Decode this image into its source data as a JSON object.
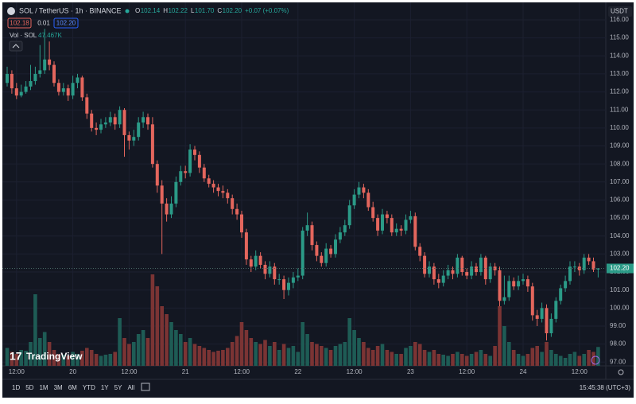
{
  "header": {
    "symbol": "SOL / TetherUS · 1h · BINANCE",
    "ohlc": [
      "O",
      "102.14",
      "H",
      "102.22",
      "L",
      "101.70",
      "C",
      "102.20"
    ],
    "change": "+0.07 (+0.07%)",
    "bid": "102.18",
    "spread": "0.01",
    "ask": "102.20",
    "volume_name": "Vol · SOL",
    "volume_label": "47.467K",
    "currency": "USDT",
    "logo": "TradingView"
  },
  "chart_data": {
    "type": "candlestick",
    "open": [
      112.5,
      113.0,
      112.2,
      111.8,
      112.0,
      112.3,
      112.6,
      113.0,
      113.2,
      113.8,
      113.5,
      112.5,
      112.0,
      112.2,
      111.8,
      112.5,
      112.8,
      111.7,
      110.8,
      110.0,
      109.9,
      110.2,
      110.3,
      110.6,
      110.2,
      111.0,
      109.6,
      109.3,
      109.5,
      110.3,
      110.6,
      110.2,
      108.0,
      106.8,
      105.8,
      105.2,
      105.8,
      107.0,
      107.6,
      107.5,
      108.8,
      108.5,
      107.8,
      107.2,
      106.9,
      106.7,
      106.5,
      106.4,
      106.1,
      105.5,
      105.2,
      104.2,
      102.7,
      102.3,
      102.9,
      102.4,
      101.9,
      102.3,
      101.6,
      101.6,
      101.0,
      101.4,
      101.7,
      101.8,
      104.3,
      104.6,
      103.5,
      102.9,
      102.5,
      103.3,
      103.0,
      103.8,
      104.2,
      104.6,
      105.7,
      106.3,
      106.7,
      106.4,
      105.6,
      105.0,
      104.3,
      105.2,
      105.0,
      104.2,
      104.4,
      104.3,
      104.9,
      105.1,
      103.4,
      102.9,
      101.9,
      102.3,
      101.6,
      101.4,
      101.8,
      102.1,
      101.9,
      102.8,
      102.0,
      101.8,
      102.3,
      102.0,
      102.8,
      101.6,
      102.3,
      102.1,
      100.4,
      100.6,
      101.5,
      101.2,
      101.5,
      101.6,
      101.2,
      99.6,
      99.4,
      100.0,
      98.6,
      99.4,
      100.4,
      101.1,
      101.5,
      102.3,
      102.3,
      102.1,
      102.8,
      102.6,
      102.14
    ],
    "high": [
      113.4,
      113.2,
      112.5,
      112.4,
      112.6,
      113.5,
      113.4,
      114.6,
      115.5,
      114.8,
      113.7,
      112.7,
      112.5,
      112.4,
      112.9,
      113.0,
      112.9,
      111.9,
      111.0,
      110.3,
      110.5,
      110.6,
      110.9,
      110.8,
      111.2,
      111.1,
      109.8,
      109.9,
      110.6,
      110.9,
      110.8,
      110.6,
      108.2,
      107.1,
      106.1,
      106.2,
      107.3,
      107.9,
      107.9,
      109.1,
      109.0,
      108.7,
      108.0,
      107.4,
      107.1,
      106.9,
      106.8,
      106.6,
      106.3,
      105.8,
      105.4,
      104.4,
      102.9,
      103.2,
      103.1,
      102.6,
      102.6,
      102.5,
      101.9,
      101.8,
      101.7,
      102.0,
      102.2,
      104.5,
      105.3,
      104.8,
      103.7,
      103.1,
      103.6,
      103.5,
      104.1,
      104.5,
      104.9,
      106.0,
      106.6,
      107.0,
      106.9,
      106.6,
      105.9,
      105.2,
      105.5,
      105.4,
      105.2,
      104.7,
      104.6,
      105.2,
      105.4,
      105.3,
      103.6,
      103.1,
      102.6,
      102.5,
      101.9,
      102.1,
      102.4,
      102.3,
      103.0,
      102.9,
      102.2,
      102.6,
      102.5,
      103.0,
      102.9,
      102.5,
      102.5,
      102.3,
      101.8,
      101.8,
      101.7,
      101.8,
      101.9,
      101.8,
      101.4,
      99.9,
      100.3,
      100.2,
      99.7,
      100.6,
      101.3,
      101.8,
      102.6,
      102.6,
      102.5,
      103.0,
      103.0,
      102.8,
      102.22
    ],
    "low": [
      112.3,
      111.9,
      111.6,
      111.7,
      111.9,
      112.1,
      112.4,
      112.8,
      113.0,
      113.2,
      112.3,
      111.8,
      111.8,
      111.5,
      111.6,
      112.2,
      111.5,
      110.5,
      109.8,
      109.6,
      109.7,
      110.0,
      110.1,
      109.9,
      110.0,
      108.4,
      108.8,
      109.0,
      109.3,
      110.0,
      109.9,
      107.8,
      106.4,
      103.0,
      104.8,
      105.0,
      105.6,
      106.8,
      107.2,
      107.3,
      108.2,
      107.5,
      107.0,
      106.7,
      106.4,
      106.2,
      106.1,
      105.8,
      105.2,
      104.9,
      103.9,
      102.4,
      102.0,
      102.1,
      102.2,
      101.6,
      101.7,
      101.3,
      101.3,
      100.5,
      100.7,
      101.1,
      101.5,
      101.6,
      104.0,
      103.2,
      102.6,
      102.3,
      102.3,
      102.8,
      102.8,
      103.6,
      104.0,
      104.4,
      105.5,
      106.1,
      106.1,
      105.4,
      104.8,
      104.0,
      104.1,
      104.7,
      104.0,
      104.0,
      104.0,
      104.1,
      104.7,
      103.2,
      102.6,
      101.7,
      101.7,
      101.3,
      101.1,
      101.2,
      101.6,
      101.6,
      101.7,
      101.8,
      101.6,
      101.6,
      101.8,
      101.8,
      101.3,
      101.4,
      101.8,
      100.1,
      100.2,
      100.4,
      101.0,
      101.0,
      101.3,
      100.9,
      99.3,
      99.0,
      99.2,
      98.2,
      98.4,
      99.2,
      100.2,
      100.9,
      101.3,
      102.0,
      101.8,
      101.9,
      102.4,
      102.0,
      101.7
    ],
    "close": [
      113.0,
      112.2,
      111.8,
      112.0,
      112.3,
      112.6,
      113.0,
      113.2,
      113.8,
      113.5,
      112.5,
      112.0,
      112.2,
      111.8,
      112.5,
      112.8,
      111.7,
      110.8,
      110.0,
      109.9,
      110.2,
      110.3,
      110.6,
      110.2,
      111.0,
      109.6,
      109.3,
      109.5,
      110.3,
      110.6,
      110.2,
      108.0,
      106.8,
      105.8,
      105.2,
      105.8,
      107.0,
      107.6,
      107.5,
      108.8,
      108.5,
      107.8,
      107.2,
      106.9,
      106.7,
      106.5,
      106.4,
      106.1,
      105.5,
      105.2,
      104.2,
      102.7,
      102.3,
      102.9,
      102.4,
      101.9,
      102.3,
      101.6,
      101.6,
      101.0,
      101.4,
      101.7,
      101.8,
      104.3,
      104.6,
      103.5,
      102.9,
      102.5,
      103.3,
      103.0,
      103.8,
      104.2,
      104.6,
      105.7,
      106.3,
      106.7,
      106.4,
      105.6,
      105.0,
      104.3,
      105.2,
      105.0,
      104.2,
      104.4,
      104.3,
      104.9,
      105.1,
      103.4,
      102.9,
      101.9,
      102.3,
      101.6,
      101.4,
      101.8,
      102.1,
      101.9,
      102.8,
      102.0,
      101.8,
      102.3,
      102.0,
      102.8,
      101.6,
      102.3,
      102.1,
      100.4,
      100.6,
      101.5,
      101.2,
      101.5,
      101.6,
      101.2,
      99.6,
      99.4,
      100.0,
      98.6,
      99.4,
      100.4,
      101.1,
      101.5,
      102.3,
      102.3,
      102.1,
      102.8,
      102.6,
      102.14,
      102.2
    ],
    "volume": [
      45,
      35,
      30,
      40,
      38,
      60,
      180,
      70,
      85,
      60,
      40,
      30,
      28,
      25,
      35,
      30,
      38,
      45,
      40,
      30,
      25,
      28,
      30,
      35,
      120,
      70,
      55,
      60,
      80,
      90,
      70,
      230,
      200,
      150,
      130,
      110,
      90,
      80,
      60,
      70,
      55,
      50,
      45,
      40,
      35,
      38,
      40,
      45,
      60,
      75,
      110,
      90,
      70,
      60,
      55,
      65,
      50,
      60,
      40,
      55,
      45,
      50,
      35,
      110,
      80,
      60,
      55,
      50,
      45,
      40,
      50,
      55,
      60,
      120,
      90,
      70,
      60,
      45,
      40,
      50,
      55,
      40,
      35,
      30,
      30,
      45,
      50,
      60,
      55,
      40,
      35,
      40,
      30,
      28,
      25,
      30,
      35,
      30,
      25,
      30,
      35,
      40,
      30,
      25,
      50,
      150,
      100,
      60,
      40,
      30,
      25,
      30,
      45,
      50,
      35,
      60,
      40,
      30,
      25,
      20,
      30,
      35,
      25,
      30,
      40,
      35,
      47.467
    ],
    "colors": {
      "up": "#2b9a87",
      "down": "#e4665d",
      "volume_up": "#1e5c55",
      "volume_down": "#7b3434"
    },
    "price_tag": "102.20",
    "ylim": [
      96.35,
      116.75
    ],
    "yticks": [
      {
        "value": 97,
        "label": "97.00"
      },
      {
        "value": 98,
        "label": "98.00"
      },
      {
        "value": 99,
        "label": "99.00"
      },
      {
        "value": 100,
        "label": "100.00"
      },
      {
        "value": 101,
        "label": "101.00"
      },
      {
        "value": 102,
        "label": "102.00"
      },
      {
        "value": 103,
        "label": "103.00"
      },
      {
        "value": 104,
        "label": "104.00"
      },
      {
        "value": 105,
        "label": "105.00"
      },
      {
        "value": 106,
        "label": "106.00"
      },
      {
        "value": 107,
        "label": "107.00"
      },
      {
        "value": 108,
        "label": "108.00"
      },
      {
        "value": 109,
        "label": "109.00"
      },
      {
        "value": 110,
        "label": "110.00"
      },
      {
        "value": 111,
        "label": "111.00"
      },
      {
        "value": 112,
        "label": "112.00"
      },
      {
        "value": 113,
        "label": "113.00"
      },
      {
        "value": 114,
        "label": "114.00"
      },
      {
        "value": 115,
        "label": "115.00"
      },
      {
        "value": 116,
        "label": "116.00"
      }
    ],
    "xticks": [
      {
        "value": 2,
        "label": "12:00"
      },
      {
        "value": 14,
        "label": "20"
      },
      {
        "value": 26,
        "label": "12:00"
      },
      {
        "value": 38,
        "label": "21"
      },
      {
        "value": 50,
        "label": "12:00"
      },
      {
        "value": 62,
        "label": "22"
      },
      {
        "value": 74,
        "label": "12:00"
      },
      {
        "value": 86,
        "label": "23"
      },
      {
        "value": 98,
        "label": "12:00"
      },
      {
        "value": 110,
        "label": "24"
      },
      {
        "value": 122,
        "label": "12:00"
      }
    ]
  },
  "toolbar": {
    "ranges": [
      "1D",
      "5D",
      "1M",
      "3M",
      "6M",
      "YTD",
      "1Y",
      "5Y",
      "All"
    ],
    "clock": "15:45:38 (UTC+3)"
  }
}
